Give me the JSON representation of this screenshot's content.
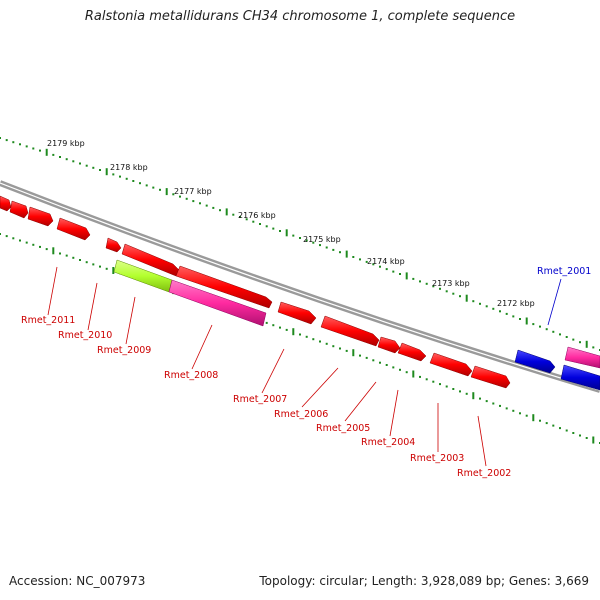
{
  "title": "Ralstonia metallidurans CH34 chromosome 1, complete sequence",
  "footer": {
    "accession": "Accession: NC_007973",
    "summary": "Topology: circular; Length: 3,928,089 bp; Genes: 3,669"
  },
  "colors": {
    "forward_gene": "#ff0000",
    "reverse_gene": "#0000dd",
    "pseudo_gene": "#ff2aa0",
    "highlight_gene": "#b3ff2e",
    "tick_dots": "#1e8a1e",
    "backbone": "#808080",
    "label_red": "#cc0000",
    "label_blue": "#0000cc"
  },
  "kbp_ticks": [
    "2179 kbp",
    "2178 kbp",
    "2177 kbp",
    "2176 kbp",
    "2175 kbp",
    "2174 kbp",
    "2173 kbp",
    "2172 kbp"
  ],
  "gene_labels": [
    {
      "name": "Rmet_2011",
      "color": "red"
    },
    {
      "name": "Rmet_2010",
      "color": "red"
    },
    {
      "name": "Rmet_2009",
      "color": "red"
    },
    {
      "name": "Rmet_2008",
      "color": "red"
    },
    {
      "name": "Rmet_2007",
      "color": "red"
    },
    {
      "name": "Rmet_2006",
      "color": "red"
    },
    {
      "name": "Rmet_2005",
      "color": "red"
    },
    {
      "name": "Rmet_2004",
      "color": "red"
    },
    {
      "name": "Rmet_2003",
      "color": "red"
    },
    {
      "name": "Rmet_2002",
      "color": "red"
    },
    {
      "name": "Rmet_2001",
      "color": "blue"
    }
  ]
}
